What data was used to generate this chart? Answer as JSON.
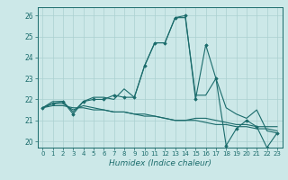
{
  "title": "",
  "xlabel": "Humidex (Indice chaleur)",
  "ylabel": "",
  "bg_color": "#cce8e8",
  "line_color": "#1a6b6b",
  "grid_color": "#aad0d0",
  "xlim": [
    -0.5,
    23.5
  ],
  "ylim": [
    19.7,
    26.4
  ],
  "yticks": [
    20,
    21,
    22,
    23,
    24,
    25,
    26
  ],
  "xticks": [
    0,
    1,
    2,
    3,
    4,
    5,
    6,
    7,
    8,
    9,
    10,
    11,
    12,
    13,
    14,
    15,
    16,
    17,
    18,
    19,
    20,
    21,
    22,
    23
  ],
  "series": [
    [
      21.6,
      21.9,
      21.9,
      21.4,
      21.9,
      22.1,
      22.1,
      22.0,
      22.5,
      22.1,
      23.6,
      24.7,
      24.7,
      25.9,
      25.9,
      22.2,
      22.2,
      23.0,
      21.6,
      21.3,
      21.1,
      21.5,
      20.5,
      20.4
    ],
    [
      21.6,
      21.8,
      21.8,
      21.5,
      21.7,
      21.6,
      21.5,
      21.4,
      21.4,
      21.3,
      21.2,
      21.2,
      21.1,
      21.0,
      21.0,
      21.1,
      21.1,
      21.0,
      20.9,
      20.8,
      20.8,
      20.7,
      20.7,
      20.7
    ],
    [
      21.6,
      21.7,
      21.7,
      21.6,
      21.6,
      21.5,
      21.5,
      21.4,
      21.4,
      21.3,
      21.3,
      21.2,
      21.1,
      21.0,
      21.0,
      21.0,
      20.9,
      20.8,
      20.8,
      20.7,
      20.7,
      20.6,
      20.6,
      20.5
    ],
    [
      21.6,
      21.8,
      21.9,
      21.3,
      21.9,
      22.0,
      22.0,
      22.2,
      22.1,
      22.1,
      23.6,
      24.7,
      24.7,
      25.9,
      26.0,
      22.0,
      24.6,
      23.0,
      19.8,
      20.6,
      21.0,
      20.7,
      19.7,
      20.4
    ]
  ]
}
